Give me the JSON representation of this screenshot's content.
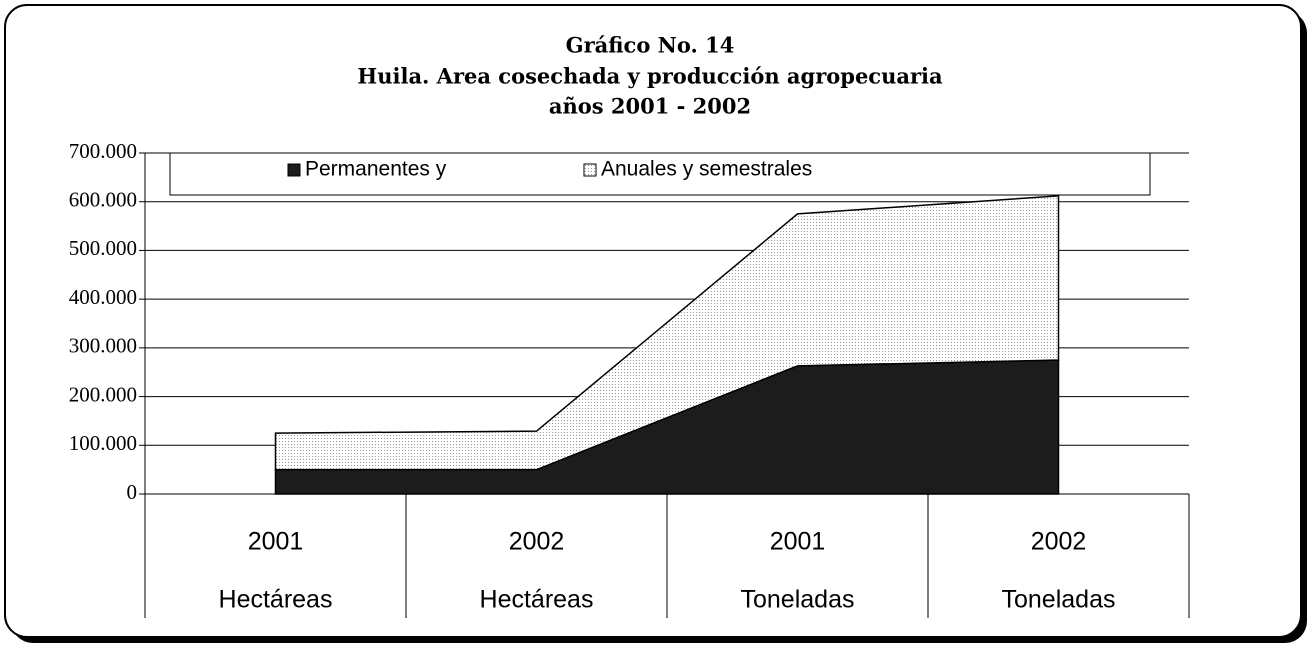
{
  "chart_data": {
    "type": "area",
    "title": [
      "Gráfico No. 14",
      "Huila. Area cosechada y producción agropecuaria",
      "años 2001 - 2002"
    ],
    "categories": [
      "2001",
      "2002",
      "2001",
      "2002"
    ],
    "category_groups": [
      "Hectáreas",
      "Hectáreas",
      "Toneladas",
      "Toneladas"
    ],
    "stacked": true,
    "series": [
      {
        "name": "Permanentes y",
        "color": "#1c1c1c",
        "values": [
          50000,
          50000,
          263000,
          275000
        ]
      },
      {
        "name": "Anuales y semestrales",
        "color": "#f2f2f2",
        "values": [
          75000,
          79000,
          312000,
          337000
        ]
      }
    ],
    "ylim": [
      0,
      700000
    ],
    "yticks": [
      0,
      {
        "value": 100000,
        "label": "100.000"
      },
      {
        "value": 200000,
        "label": "200.000"
      },
      {
        "value": 300000,
        "label": "300.000"
      },
      {
        "value": 400000,
        "label": "400.000"
      },
      {
        "value": 500000,
        "label": "500.000"
      },
      {
        "value": 600000,
        "label": "600.000"
      },
      {
        "value": 700000,
        "label": "700.000"
      }
    ],
    "grid": true,
    "legend": "top"
  }
}
